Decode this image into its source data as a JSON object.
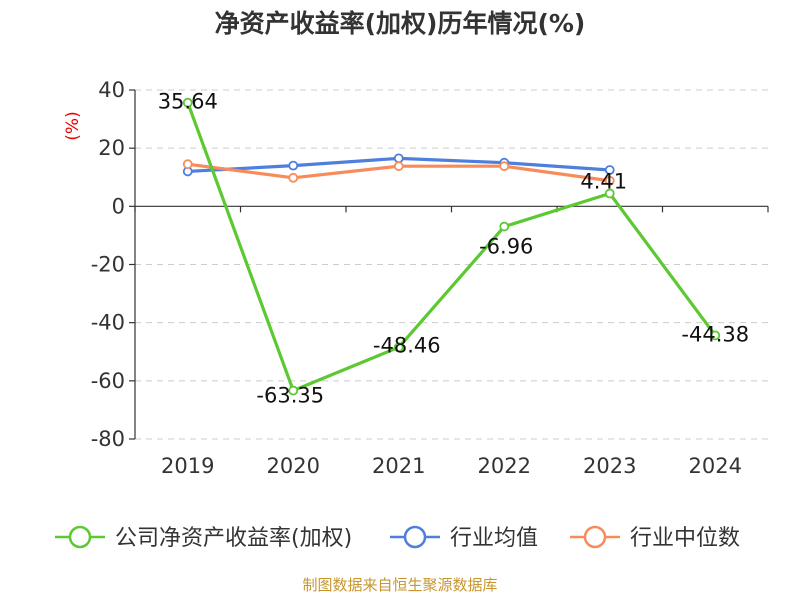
{
  "chart_data": {
    "type": "line",
    "title": "净资产收益率(加权)历年情况(%)",
    "ylabel": "(%)",
    "xlabel": "",
    "categories": [
      "2019",
      "2020",
      "2021",
      "2022",
      "2023",
      "2024"
    ],
    "ylim": [
      -80,
      40
    ],
    "yticks": [
      40,
      20,
      0,
      -20,
      -40,
      -60,
      -80
    ],
    "grid": true,
    "legend_position": "bottom",
    "series": [
      {
        "name": "公司净资产收益率(加权)",
        "color": "#5cc832",
        "values": [
          35.64,
          -63.35,
          -48.46,
          -6.96,
          4.41,
          -44.38
        ],
        "labels": [
          "35.64",
          "-63.35",
          "-48.46",
          "-6.96",
          "4.41",
          "-44.38"
        ]
      },
      {
        "name": "行业均值",
        "color": "#4f7fdc",
        "values": [
          12.0,
          14.0,
          16.5,
          15.0,
          12.5,
          null
        ]
      },
      {
        "name": "行业中位数",
        "color": "#f78c5a",
        "values": [
          14.5,
          9.8,
          13.8,
          13.8,
          8.8,
          null
        ]
      }
    ],
    "source": "制图数据来自恒生聚源数据库"
  }
}
